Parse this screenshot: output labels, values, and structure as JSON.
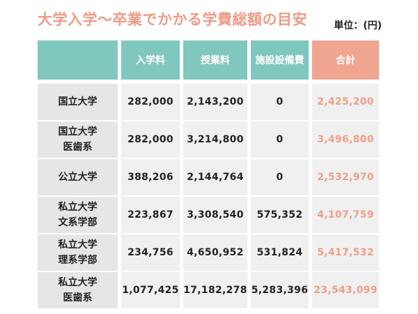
{
  "title": "大学入学〜卒業でかかる学費総額の目安",
  "unit_label": "単位：(円)",
  "columns": [
    "入学料",
    "授業料",
    "施設設備費",
    "合計"
  ],
  "rows": [
    {
      "label_lines": [
        "国立大学"
      ],
      "values": [
        "282,000",
        "2,143,200",
        "0",
        "2,425,200"
      ]
    },
    {
      "label_lines": [
        "国立大学",
        "医歯系"
      ],
      "values": [
        "282,000",
        "3,214,800",
        "0",
        "3,496,800"
      ]
    },
    {
      "label_lines": [
        "公立大学"
      ],
      "values": [
        "388,206",
        "2,144,764",
        "0",
        "2,532,970"
      ]
    },
    {
      "label_lines": [
        "私立大学",
        "文系学部"
      ],
      "values": [
        "223,867",
        "3,308,540",
        "575,352",
        "4,107,759"
      ]
    },
    {
      "label_lines": [
        "私立大学",
        "理系学部"
      ],
      "values": [
        "234,756",
        "4,650,952",
        "531,824",
        "5,417,532"
      ]
    },
    {
      "label_lines": [
        "私立大学",
        "医歯系"
      ],
      "values": [
        "1,077,425",
        "17,182,278",
        "5,283,396",
        "23,543,099"
      ]
    }
  ],
  "colors": {
    "title": "#ef9a85",
    "header": "#80c7be",
    "header_total": "#f0a591",
    "row_header_bg": "#e6e6e6",
    "cell_bg": "#f0f0f0",
    "total_text": "#ee9f88"
  }
}
